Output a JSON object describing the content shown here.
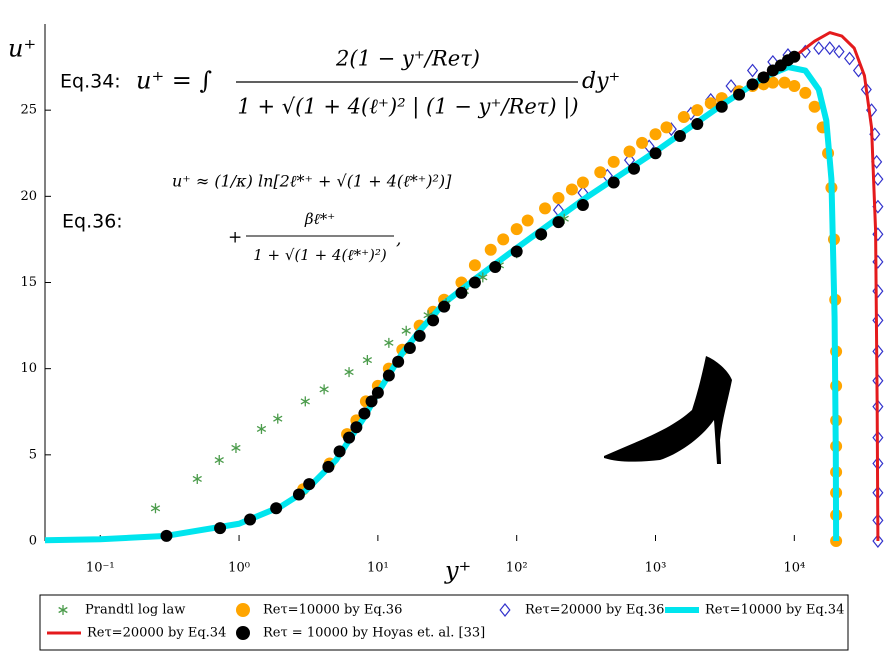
{
  "chart_data": {
    "type": "line",
    "x_label": "y⁺",
    "y_label": "u⁺",
    "xscale": "log",
    "xlim": [
      0.04,
      45000
    ],
    "ylim": [
      0,
      30
    ],
    "xticks": [
      {
        "value": 0.1,
        "label": "10⁻¹"
      },
      {
        "value": 1,
        "label": "10⁰"
      },
      {
        "value": 10,
        "label": "10¹"
      },
      {
        "value": 100,
        "label": "10²"
      },
      {
        "value": 1000,
        "label": "10³"
      },
      {
        "value": 10000,
        "label": "10⁴"
      }
    ],
    "yticks": [
      0,
      5,
      10,
      15,
      20,
      25
    ],
    "legend": "bottom",
    "annotations": {
      "eq34": {
        "label": "Eq.34:",
        "lhs": "u⁺ = ∫",
        "numerator": "2(1 − y⁺/Reτ)",
        "denominator": "1 + √(1 + 4(ℓ⁺)² | (1 − y⁺/Reτ) |)",
        "tail": "dy⁺"
      },
      "eq36": {
        "label": "Eq.36:",
        "line1": "u⁺ ≈ (1/κ) ln[2ℓ*⁺ + √(1 + 4(ℓ*⁺)²)]",
        "plus": "+",
        "numerator": "βℓ*⁺",
        "denominator": "1 + √(1 + 4(ℓ*⁺)²)",
        "tail": ","
      }
    },
    "series": [
      {
        "name": "Prandtl log law",
        "style": "marker",
        "marker": "star",
        "color": "#4c9c4c",
        "x": [
          0.25,
          0.5,
          0.72,
          0.95,
          1.45,
          1.9,
          3.0,
          4.1,
          6.2,
          8.4,
          12,
          16,
          23,
          31,
          42,
          57,
          75,
          100,
          150,
          220
        ],
        "values": [
          1.9,
          3.6,
          4.7,
          5.4,
          6.5,
          7.1,
          8.1,
          8.8,
          9.8,
          10.5,
          11.5,
          12.2,
          13.1,
          13.8,
          14.5,
          15.3,
          16.0,
          16.7,
          17.7,
          18.7
        ]
      },
      {
        "name": "Reτ=10000 by Eq.36",
        "style": "marker",
        "marker": "circle",
        "color": "#ffa500",
        "x": [
          2.9,
          4.5,
          6,
          7,
          8.2,
          10,
          12,
          15,
          20,
          25,
          30,
          40,
          50,
          65,
          80,
          100,
          120,
          160,
          200,
          250,
          300,
          400,
          500,
          650,
          800,
          1000,
          1200,
          1600,
          2000,
          2500,
          3000,
          4000,
          5000,
          6000,
          7000,
          8500,
          10000,
          12000,
          14000,
          16000,
          17500,
          18500,
          19300,
          19700,
          20000,
          20000,
          20000,
          20000,
          20000,
          20000,
          20000,
          20000
        ],
        "values": [
          3.0,
          4.5,
          6.2,
          7.0,
          8.1,
          9.0,
          10.0,
          11.1,
          12.5,
          13.3,
          14.0,
          15.0,
          16.0,
          16.9,
          17.5,
          18.1,
          18.6,
          19.3,
          19.9,
          20.4,
          20.8,
          21.4,
          22.0,
          22.6,
          23.1,
          23.6,
          24.0,
          24.6,
          25.0,
          25.4,
          25.7,
          26.1,
          26.4,
          26.5,
          26.6,
          26.6,
          26.4,
          26.0,
          25.2,
          24.0,
          22.5,
          20.5,
          17.5,
          14,
          11,
          9,
          7,
          5.5,
          4,
          2.8,
          1.5,
          0
        ]
      },
      {
        "name": "Reτ=20000 by Eq.36",
        "style": "marker",
        "marker": "diamond",
        "color": "#3333cc",
        "x": [
          200,
          300,
          450,
          650,
          900,
          1300,
          1800,
          2500,
          3500,
          5000,
          7000,
          9000,
          12000,
          15000,
          18000,
          21000,
          25000,
          29000,
          33000,
          36000,
          38000,
          39200,
          40000,
          40000,
          40000,
          40000,
          40000,
          40000,
          40000,
          40000,
          40000,
          40000,
          40000,
          40000,
          40000,
          40000
        ],
        "values": [
          19.2,
          20.2,
          21.2,
          22.1,
          22.9,
          23.9,
          24.8,
          25.6,
          26.4,
          27.3,
          27.8,
          28.2,
          28.4,
          28.6,
          28.6,
          28.4,
          28.0,
          27.3,
          26.2,
          25.0,
          23.6,
          22.0,
          21,
          19.4,
          17.8,
          16.2,
          14.5,
          12.8,
          11,
          9.3,
          7.8,
          6,
          4.5,
          2.8,
          1.2,
          0
        ]
      },
      {
        "name": "Reτ=10000 by Eq.34",
        "style": "line",
        "width": 6,
        "color": "#00e5ee",
        "x": [
          0.04,
          0.1,
          0.3,
          1,
          2,
          3,
          5,
          8,
          10,
          15,
          20,
          30,
          50,
          100,
          300,
          1000,
          3000,
          6000,
          9000,
          12000,
          15000,
          17000,
          18500,
          19500,
          19900,
          20000
        ],
        "values": [
          0.04,
          0.1,
          0.3,
          1,
          2,
          2.9,
          4.7,
          7.2,
          8.6,
          10.9,
          12.2,
          13.8,
          15.2,
          17,
          19.8,
          22.6,
          25.3,
          26.9,
          27.5,
          27.3,
          26.2,
          24.4,
          21,
          13,
          5,
          0
        ]
      },
      {
        "name": "Reτ=20000 by Eq.34",
        "style": "line",
        "width": 3,
        "color": "#e41a1c",
        "x": [
          0.04,
          0.1,
          0.3,
          1,
          2,
          3,
          5,
          8,
          10,
          15,
          20,
          30,
          50,
          100,
          300,
          1000,
          3000,
          6000,
          10000,
          14000,
          18000,
          22000,
          27000,
          32000,
          36000,
          38500,
          39500,
          40000
        ],
        "values": [
          0.04,
          0.1,
          0.3,
          1,
          2,
          2.9,
          4.7,
          7.2,
          8.6,
          10.9,
          12.2,
          13.8,
          15.2,
          17,
          19.8,
          22.6,
          25.3,
          27.0,
          28.1,
          29.0,
          29.5,
          29.3,
          28.6,
          27,
          24,
          18,
          8,
          0
        ]
      },
      {
        "name": "Reτ = 10000 by Hoyas et. al. [33]",
        "style": "marker",
        "marker": "circle",
        "color": "#000000",
        "x": [
          0.3,
          0.73,
          1.2,
          1.85,
          2.7,
          3.2,
          4.4,
          5.3,
          6.2,
          7,
          8,
          9,
          10,
          12,
          14,
          17,
          20,
          25,
          30,
          40,
          50,
          70,
          100,
          150,
          200,
          300,
          500,
          700,
          1000,
          1500,
          2000,
          3000,
          4000,
          5000,
          6000,
          7000,
          8000,
          9000,
          10000
        ],
        "values": [
          0.3,
          0.75,
          1.25,
          1.9,
          2.7,
          3.3,
          4.3,
          5.2,
          6.0,
          6.6,
          7.4,
          8.1,
          8.6,
          9.6,
          10.4,
          11.2,
          11.9,
          12.8,
          13.6,
          14.4,
          15.0,
          15.9,
          16.8,
          17.8,
          18.5,
          19.5,
          20.8,
          21.6,
          22.5,
          23.5,
          24.2,
          25.2,
          25.9,
          26.5,
          26.9,
          27.3,
          27.6,
          27.9,
          28.1
        ]
      }
    ]
  }
}
